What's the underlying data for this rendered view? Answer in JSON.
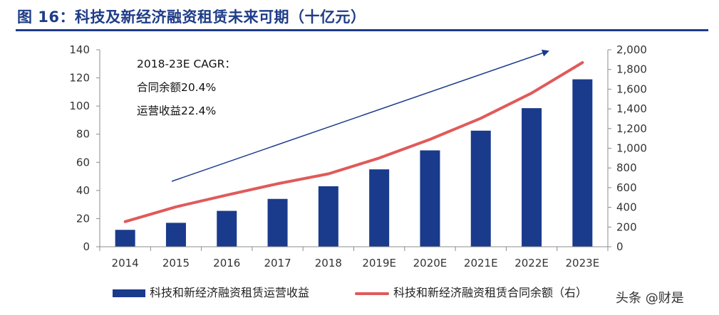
{
  "title": "图 16：科技及新经济融资租赁未来可期（十亿元）",
  "annotation": {
    "line1": "2018-23E CAGR：",
    "line2": "合同余额20.4%",
    "line3": "运营收益22.4%"
  },
  "watermark": "头条 @财是",
  "colors": {
    "bar": "#1a3a8c",
    "line": "#e05a5a",
    "title": "#1f3c88",
    "arrow": "#1a3a8c"
  },
  "chart_data": {
    "type": "bar+line",
    "categories": [
      "2014",
      "2015",
      "2016",
      "2017",
      "2018",
      "2019E",
      "2020E",
      "2021E",
      "2022E",
      "2023E"
    ],
    "series": [
      {
        "name": "科技和新经济融资租赁运营收益",
        "type": "bar",
        "axis": "left",
        "values": [
          12,
          17,
          25.5,
          34,
          43,
          55,
          68.5,
          82.5,
          98.5,
          119
        ]
      },
      {
        "name": "科技和新经济融资租赁合同余额（右）",
        "type": "line",
        "axis": "right",
        "values": [
          255,
          405,
          525,
          640,
          740,
          900,
          1090,
          1305,
          1560,
          1870
        ]
      }
    ],
    "y_left": {
      "min": 0,
      "max": 140,
      "step": 20,
      "tick_labels": [
        "0",
        "20",
        "40",
        "60",
        "80",
        "100",
        "120",
        "140"
      ]
    },
    "y_right": {
      "min": 0,
      "max": 2000,
      "step": 200,
      "tick_labels": [
        "0",
        "200",
        "400",
        "600",
        "800",
        "1,000",
        "1,200",
        "1,400",
        "1,600",
        "1,800",
        "2,000"
      ]
    },
    "grid": false,
    "legend_position": "bottom"
  }
}
